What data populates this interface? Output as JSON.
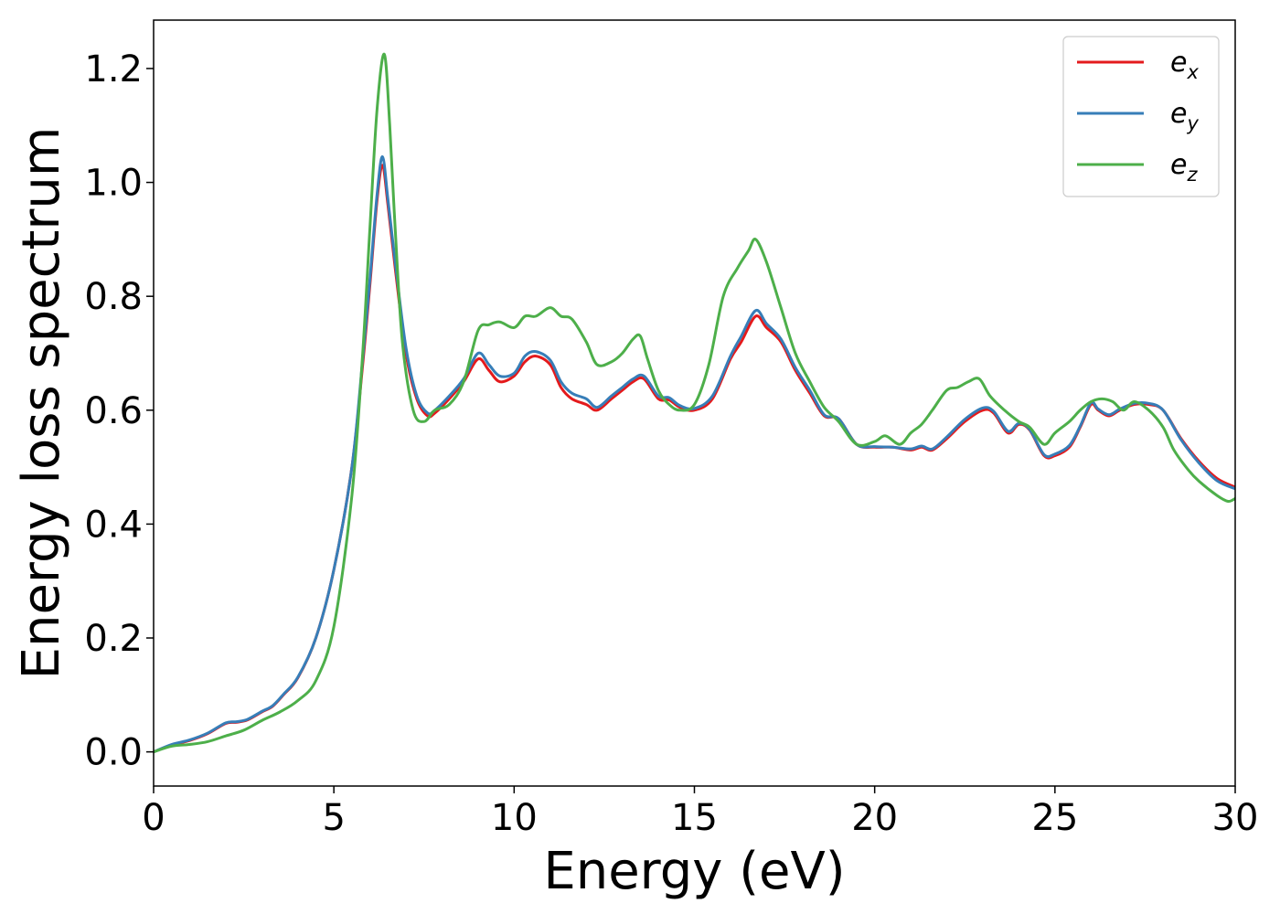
{
  "chart_data": {
    "type": "line",
    "xlabel": "Energy (eV)",
    "ylabel": "Energy loss spectrum",
    "xlim": [
      0,
      30
    ],
    "ylim": [
      -0.06,
      1.285
    ],
    "xticks": [
      0,
      5,
      10,
      15,
      20,
      25,
      30
    ],
    "xtick_labels": [
      "0",
      "5",
      "10",
      "15",
      "20",
      "25",
      "30"
    ],
    "yticks": [
      0.0,
      0.2,
      0.4,
      0.6,
      0.8,
      1.0,
      1.2
    ],
    "ytick_labels": [
      "0.0",
      "0.2",
      "0.4",
      "0.6",
      "0.8",
      "1.0",
      "1.2"
    ],
    "grid": false,
    "legend": "top-right",
    "series": [
      {
        "name": "e_x",
        "base": "e",
        "sub": "x",
        "color": "#e41a1c",
        "x": [
          0,
          0.5,
          1,
          1.5,
          2,
          2.3,
          2.6,
          3,
          3.3,
          3.6,
          4,
          4.5,
          5,
          5.5,
          5.8,
          6,
          6.2,
          6.35,
          6.5,
          6.7,
          7,
          7.3,
          7.6,
          7.8,
          8.2,
          8.6,
          9,
          9.3,
          9.6,
          10,
          10.3,
          10.6,
          11,
          11.3,
          11.6,
          12,
          12.3,
          12.7,
          13,
          13.3,
          13.6,
          14,
          14.3,
          14.6,
          15,
          15.5,
          16,
          16.3,
          16.7,
          17,
          17.4,
          17.8,
          18.2,
          18.6,
          19,
          19.5,
          20,
          20.5,
          21,
          21.3,
          21.6,
          22,
          22.5,
          23,
          23.3,
          23.7,
          24,
          24.3,
          24.7,
          25,
          25.4,
          25.7,
          26,
          26.2,
          26.5,
          26.8,
          27.2,
          27.6,
          28,
          28.5,
          29,
          29.5,
          30
        ],
        "y": [
          0.0,
          0.012,
          0.02,
          0.032,
          0.05,
          0.052,
          0.056,
          0.07,
          0.08,
          0.1,
          0.13,
          0.2,
          0.32,
          0.5,
          0.68,
          0.82,
          0.97,
          1.03,
          0.96,
          0.85,
          0.7,
          0.62,
          0.59,
          0.595,
          0.62,
          0.65,
          0.69,
          0.67,
          0.65,
          0.66,
          0.685,
          0.695,
          0.68,
          0.64,
          0.62,
          0.61,
          0.6,
          0.62,
          0.635,
          0.65,
          0.655,
          0.62,
          0.618,
          0.605,
          0.6,
          0.62,
          0.69,
          0.72,
          0.765,
          0.745,
          0.72,
          0.67,
          0.63,
          0.59,
          0.585,
          0.54,
          0.535,
          0.535,
          0.53,
          0.535,
          0.53,
          0.55,
          0.58,
          0.6,
          0.595,
          0.56,
          0.575,
          0.565,
          0.52,
          0.52,
          0.535,
          0.57,
          0.61,
          0.6,
          0.59,
          0.6,
          0.61,
          0.61,
          0.6,
          0.55,
          0.51,
          0.48,
          0.465
        ]
      },
      {
        "name": "e_y",
        "base": "e",
        "sub": "y",
        "color": "#377eb8",
        "x": [
          0,
          0.5,
          1,
          1.5,
          2,
          2.3,
          2.6,
          3,
          3.3,
          3.6,
          4,
          4.5,
          5,
          5.5,
          5.8,
          6,
          6.2,
          6.35,
          6.5,
          6.7,
          7,
          7.3,
          7.6,
          7.8,
          8.2,
          8.6,
          9,
          9.3,
          9.6,
          10,
          10.3,
          10.6,
          11,
          11.3,
          11.6,
          12,
          12.3,
          12.7,
          13,
          13.3,
          13.6,
          14,
          14.3,
          14.6,
          15,
          15.5,
          16,
          16.3,
          16.7,
          17,
          17.4,
          17.8,
          18.2,
          18.6,
          19,
          19.5,
          20,
          20.5,
          21,
          21.3,
          21.6,
          22,
          22.5,
          23,
          23.3,
          23.7,
          24,
          24.3,
          24.7,
          25,
          25.4,
          25.7,
          26,
          26.2,
          26.5,
          26.8,
          27.2,
          27.6,
          28,
          28.5,
          29,
          29.5,
          30
        ],
        "y": [
          0.0,
          0.013,
          0.021,
          0.033,
          0.051,
          0.053,
          0.057,
          0.071,
          0.081,
          0.101,
          0.131,
          0.2,
          0.32,
          0.5,
          0.69,
          0.83,
          0.98,
          1.045,
          0.97,
          0.86,
          0.71,
          0.625,
          0.595,
          0.6,
          0.625,
          0.655,
          0.7,
          0.68,
          0.66,
          0.665,
          0.695,
          0.703,
          0.688,
          0.65,
          0.63,
          0.62,
          0.605,
          0.625,
          0.64,
          0.655,
          0.66,
          0.625,
          0.622,
          0.608,
          0.603,
          0.625,
          0.695,
          0.73,
          0.775,
          0.752,
          0.725,
          0.675,
          0.635,
          0.592,
          0.585,
          0.54,
          0.536,
          0.535,
          0.532,
          0.537,
          0.532,
          0.553,
          0.584,
          0.604,
          0.598,
          0.563,
          0.577,
          0.566,
          0.522,
          0.523,
          0.538,
          0.572,
          0.613,
          0.602,
          0.592,
          0.602,
          0.612,
          0.612,
          0.6,
          0.548,
          0.507,
          0.476,
          0.462
        ]
      },
      {
        "name": "e_z",
        "base": "e",
        "sub": "z",
        "color": "#4daf4a",
        "x": [
          0,
          0.5,
          1,
          1.5,
          2,
          2.5,
          3,
          3.5,
          4,
          4.5,
          5,
          5.5,
          5.8,
          6,
          6.2,
          6.4,
          6.55,
          6.7,
          6.9,
          7.2,
          7.5,
          7.8,
          8.2,
          8.6,
          9,
          9.3,
          9.6,
          10,
          10.3,
          10.6,
          11,
          11.3,
          11.6,
          12,
          12.3,
          12.7,
          13,
          13.3,
          13.5,
          13.7,
          14,
          14.3,
          14.6,
          15,
          15.4,
          15.8,
          16.2,
          16.5,
          16.7,
          17,
          17.4,
          17.8,
          18.2,
          18.6,
          19,
          19.5,
          20,
          20.3,
          20.7,
          21,
          21.3,
          21.6,
          22,
          22.3,
          22.6,
          22.9,
          23.2,
          23.6,
          24,
          24.3,
          24.7,
          25,
          25.4,
          25.7,
          26,
          26.3,
          26.6,
          26.9,
          27.2,
          27.6,
          28,
          28.3,
          28.7,
          29,
          29.5,
          29.8,
          30
        ],
        "y": [
          0.0,
          0.01,
          0.013,
          0.018,
          0.028,
          0.038,
          0.055,
          0.07,
          0.09,
          0.125,
          0.22,
          0.45,
          0.7,
          0.92,
          1.13,
          1.225,
          1.1,
          0.92,
          0.72,
          0.6,
          0.58,
          0.6,
          0.61,
          0.65,
          0.74,
          0.75,
          0.755,
          0.745,
          0.765,
          0.765,
          0.78,
          0.765,
          0.76,
          0.72,
          0.68,
          0.685,
          0.7,
          0.725,
          0.73,
          0.69,
          0.635,
          0.61,
          0.6,
          0.61,
          0.68,
          0.8,
          0.85,
          0.88,
          0.9,
          0.86,
          0.78,
          0.7,
          0.65,
          0.605,
          0.58,
          0.54,
          0.545,
          0.555,
          0.54,
          0.56,
          0.575,
          0.6,
          0.635,
          0.64,
          0.65,
          0.655,
          0.625,
          0.6,
          0.58,
          0.57,
          0.54,
          0.56,
          0.58,
          0.6,
          0.615,
          0.62,
          0.615,
          0.6,
          0.615,
          0.6,
          0.57,
          0.53,
          0.495,
          0.475,
          0.45,
          0.44,
          0.445
        ]
      }
    ]
  }
}
